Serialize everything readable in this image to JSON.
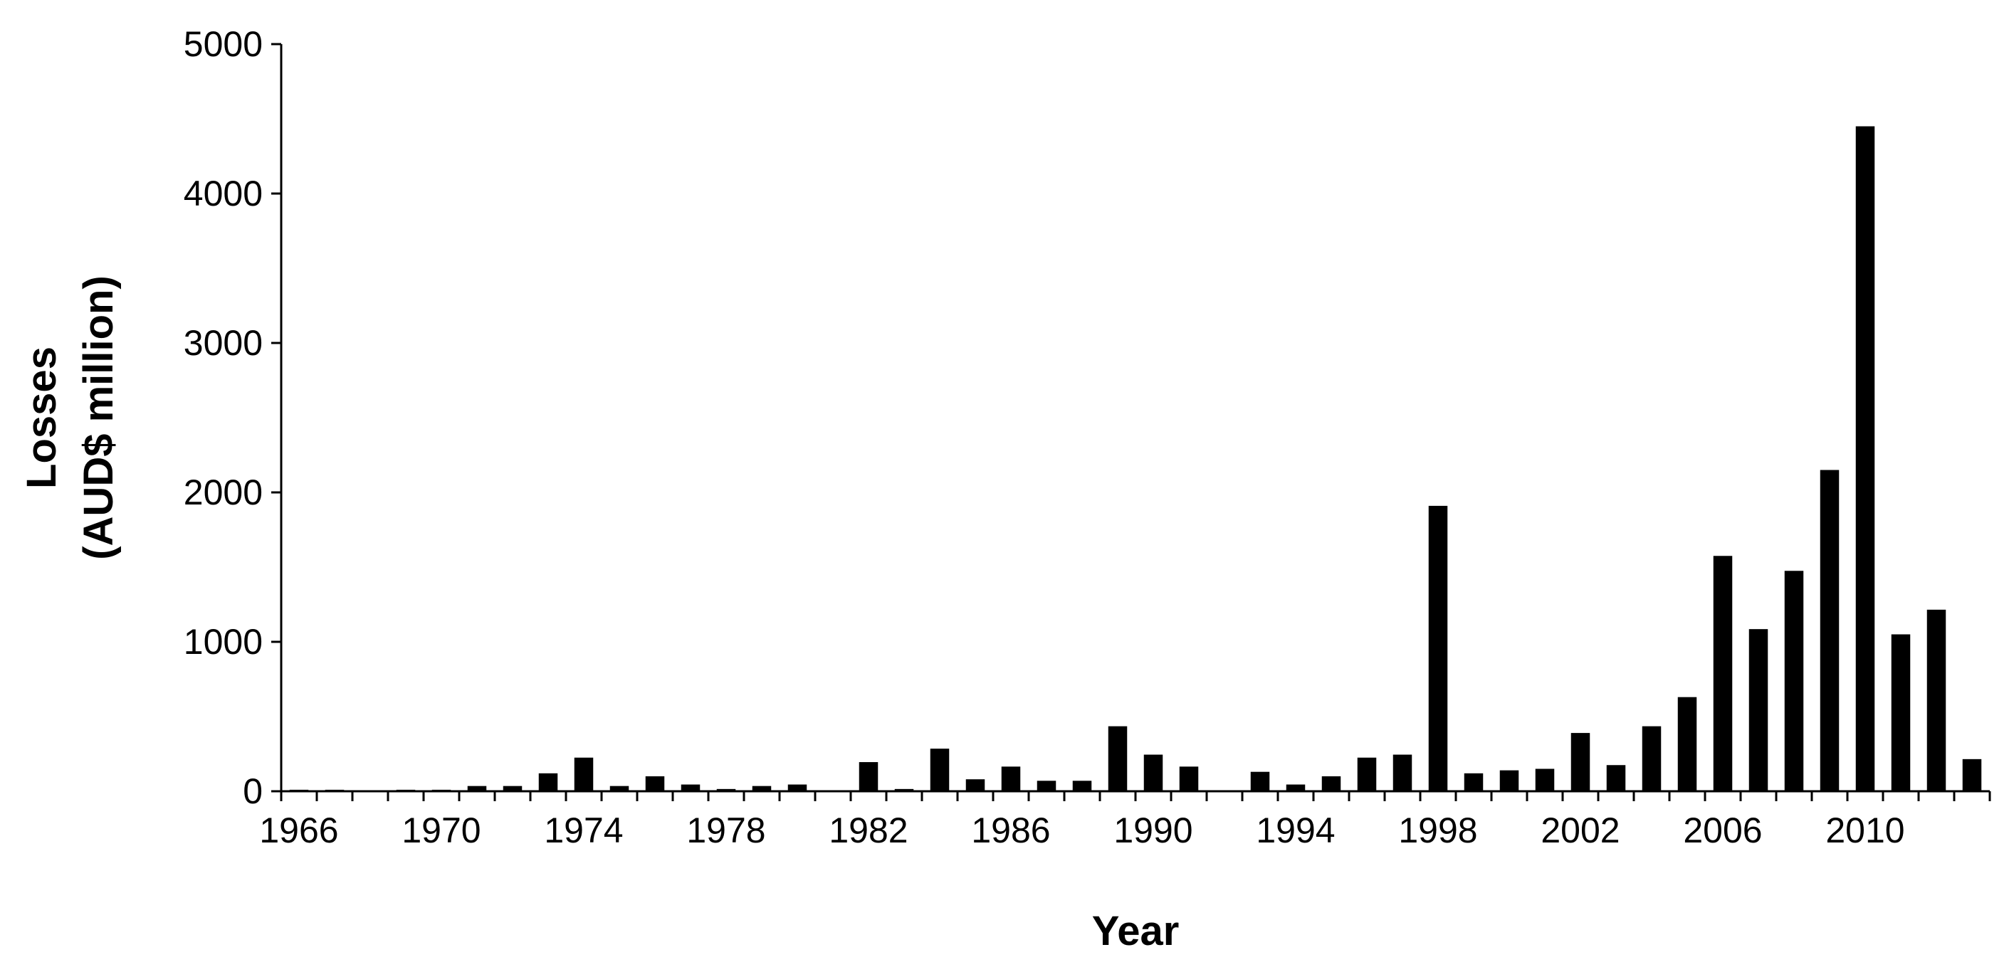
{
  "chart_data": {
    "type": "bar",
    "xlabel": "Year",
    "ylabel_lines": [
      "Losses",
      "(AUD$ million)"
    ],
    "ylim": [
      0,
      5000
    ],
    "yticks": [
      "0",
      "1000",
      "2000",
      "3000",
      "4000",
      "5000"
    ],
    "ytick_values": [
      0,
      1000,
      2000,
      3000,
      4000,
      5000
    ],
    "xtick_labels": [
      "1966",
      "1970",
      "1974",
      "1978",
      "1982",
      "1986",
      "1990",
      "1994",
      "1998",
      "2002",
      "2006",
      "2010"
    ],
    "categories": [
      1966,
      1967,
      1968,
      1969,
      1970,
      1971,
      1972,
      1973,
      1974,
      1975,
      1976,
      1977,
      1978,
      1979,
      1980,
      1981,
      1982,
      1983,
      1984,
      1985,
      1986,
      1987,
      1988,
      1989,
      1990,
      1991,
      1992,
      1993,
      1994,
      1995,
      1996,
      1997,
      1998,
      1999,
      2000,
      2001,
      2002,
      2003,
      2004,
      2005,
      2006,
      2007,
      2008,
      2009,
      2010,
      2011,
      2012,
      2013
    ],
    "values": [
      10,
      10,
      0,
      10,
      10,
      35,
      35,
      120,
      225,
      35,
      100,
      45,
      15,
      35,
      45,
      0,
      195,
      15,
      285,
      80,
      165,
      70,
      70,
      435,
      245,
      165,
      0,
      130,
      45,
      100,
      225,
      245,
      1910,
      120,
      140,
      150,
      390,
      175,
      435,
      630,
      1575,
      1085,
      1475,
      2150,
      4450,
      1050,
      1215,
      215
    ],
    "bar_color": "#000000",
    "grid": false,
    "legend": "none"
  }
}
